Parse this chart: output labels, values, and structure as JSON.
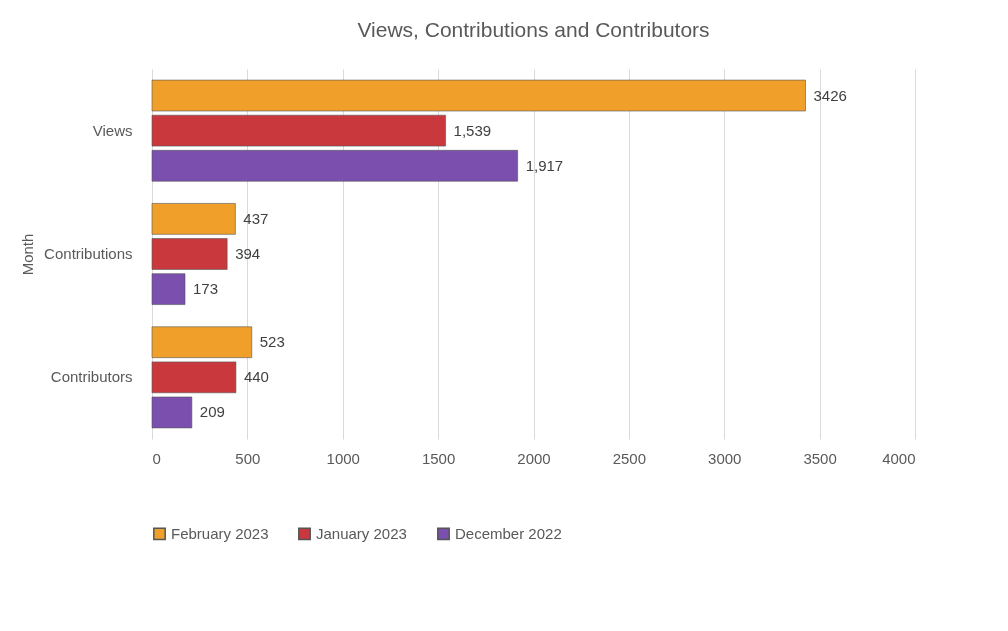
{
  "chart_data": {
    "type": "bar",
    "orientation": "horizontal",
    "title": "Views, Contributions and Contributors",
    "ylabel": "Month",
    "categories": [
      "Views",
      "Contributions",
      "Contributors"
    ],
    "series": [
      {
        "name": "February  2023",
        "color": "#f0a02a",
        "values": [
          3426,
          437,
          523
        ],
        "value_labels": [
          "3426",
          "437",
          "523"
        ]
      },
      {
        "name": "January  2023",
        "color": "#c8383c",
        "values": [
          1539,
          394,
          440
        ],
        "value_labels": [
          "1,539",
          "394",
          "440"
        ]
      },
      {
        "name": "December  2022",
        "color": "#7a4fae",
        "values": [
          1917,
          173,
          209
        ],
        "value_labels": [
          "1,917",
          "173",
          "209"
        ]
      }
    ],
    "xlim": [
      0,
      4000
    ],
    "xticks": [
      0,
      500,
      1000,
      1500,
      2000,
      2500,
      3000,
      3500,
      4000
    ],
    "grid": "x",
    "legend": "bottom"
  }
}
